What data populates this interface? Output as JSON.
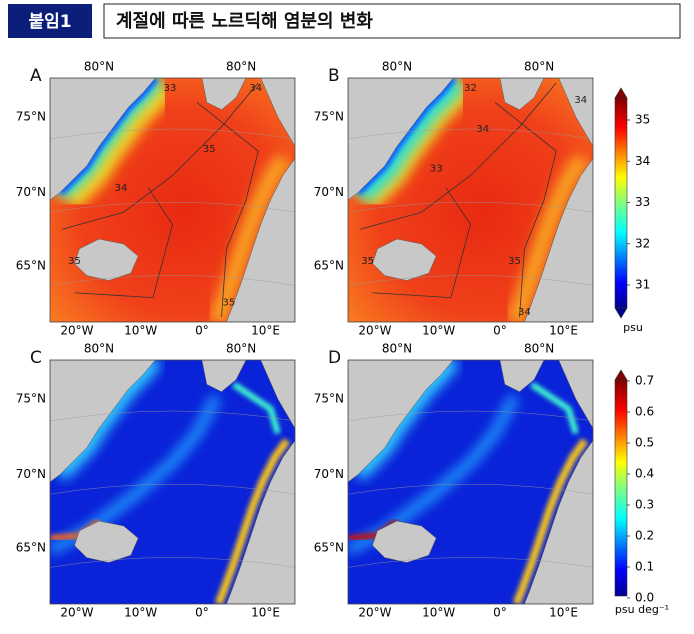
{
  "header": {
    "tag": "붙임1",
    "title": "계절에 따른 노르딕해 염분의 변화"
  },
  "panels": [
    {
      "label": "A",
      "top_labels": [
        "80°N",
        "80°N"
      ],
      "lat_labels": [
        "75°N",
        "70°N",
        "65°N"
      ],
      "lon_labels": [
        "20°W",
        "10°W",
        "0°",
        "10°E"
      ],
      "contour_labels": [
        "33",
        "34",
        "35",
        "34",
        "35",
        "35"
      ]
    },
    {
      "label": "B",
      "top_labels": [
        "80°N",
        "80°N"
      ],
      "lat_labels": [
        "75°N",
        "70°N",
        "65°N"
      ],
      "lon_labels": [
        "20°W",
        "10°W",
        "0°",
        "10°E"
      ],
      "contour_labels": [
        "32",
        "34",
        "34",
        "33",
        "35",
        "35",
        "34"
      ]
    },
    {
      "label": "C",
      "top_labels": [
        "80°N",
        "80°N"
      ],
      "lat_labels": [
        "75°N",
        "70°N",
        "65°N"
      ],
      "lon_labels": [
        "20°W",
        "10°W",
        "0°",
        "10°E"
      ],
      "contour_labels": []
    },
    {
      "label": "D",
      "top_labels": [
        "80°N",
        "80°N"
      ],
      "lat_labels": [
        "75°N",
        "70°N",
        "65°N"
      ],
      "lon_labels": [
        "20°W",
        "10°W",
        "0°",
        "10°E"
      ],
      "contour_labels": []
    }
  ],
  "colorbars": [
    {
      "ticks": [
        "31",
        "32",
        "33",
        "34",
        "35"
      ],
      "unit": "psu"
    },
    {
      "ticks": [
        "0.0",
        "0.1",
        "0.2",
        "0.3",
        "0.4",
        "0.5",
        "0.6",
        "0.7"
      ],
      "unit": "psu deg⁻¹"
    }
  ]
}
